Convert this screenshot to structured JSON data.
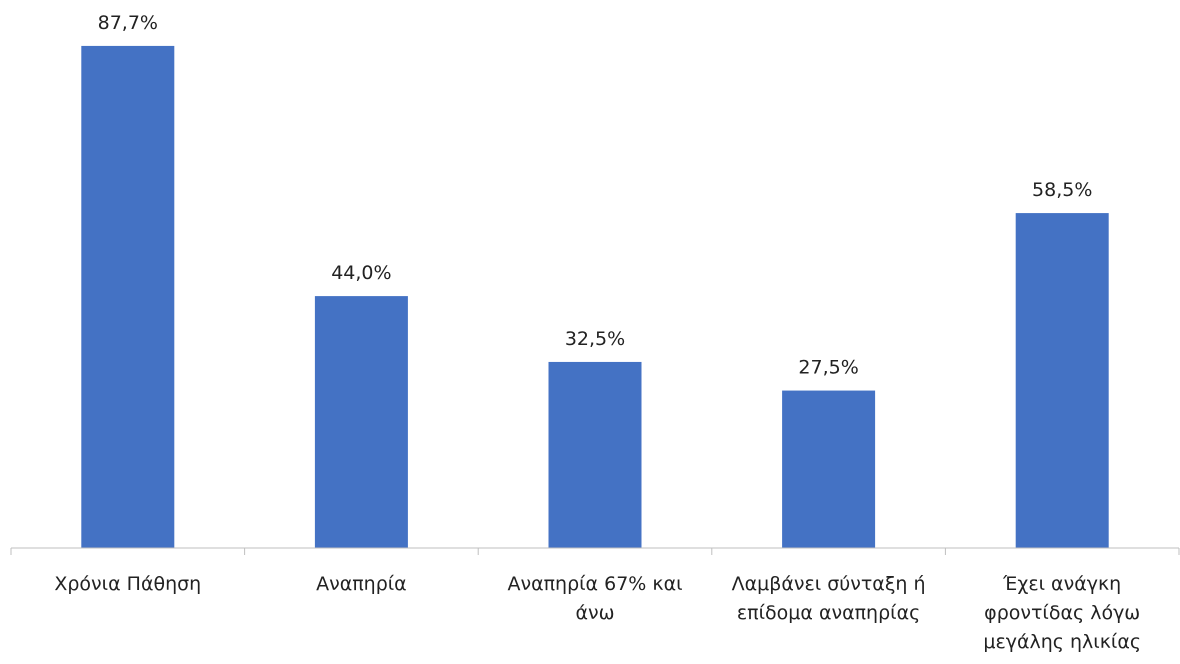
{
  "chart_data": {
    "type": "bar",
    "categories": [
      [
        "Χρόνια Πάθηση"
      ],
      [
        "Αναπηρία"
      ],
      [
        "Αναπηρία 67% και",
        "άνω"
      ],
      [
        "Λαμβάνει σύνταξη ή",
        "επίδομα αναπηρίας"
      ],
      [
        "Έχει ανάγκη",
        "φροντίδας λόγω",
        "μεγάλης ηλικίας"
      ]
    ],
    "values": [
      87.7,
      44.0,
      32.5,
      27.5,
      58.5
    ],
    "data_labels": [
      "87,7%",
      "44,0%",
      "32,5%",
      "27,5%",
      "58,5%"
    ],
    "bar_color": "#4472c4",
    "ylim": [
      0,
      100
    ],
    "grid": false,
    "legend": "none"
  }
}
